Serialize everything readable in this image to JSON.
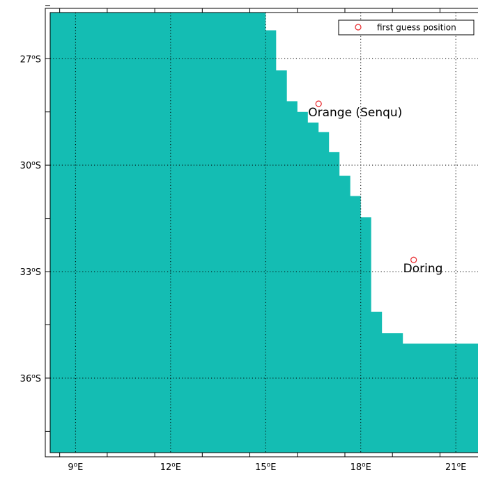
{
  "map": {
    "projection": "plate-carree",
    "lon_range": [
      8.2,
      21.7
    ],
    "lat_range": [
      -38.1,
      -25.7
    ],
    "colors": {
      "ocean": "#14bdb3",
      "land": "#ffffff",
      "grid": "#000000",
      "marker": "#e8262a"
    },
    "grid_style": "dotted",
    "lon_ticks": [
      {
        "value": 9,
        "deg": "9",
        "hemi": "E"
      },
      {
        "value": 12,
        "deg": "12",
        "hemi": "E"
      },
      {
        "value": 15,
        "deg": "15",
        "hemi": "E"
      },
      {
        "value": 18,
        "deg": "18",
        "hemi": "E"
      },
      {
        "value": 21,
        "deg": "21",
        "hemi": "E"
      }
    ],
    "lat_ticks": [
      {
        "value": -27,
        "deg": "27",
        "hemi": "S"
      },
      {
        "value": -30,
        "deg": "30",
        "hemi": "S"
      },
      {
        "value": -33,
        "deg": "33",
        "hemi": "S"
      },
      {
        "value": -36,
        "deg": "36",
        "hemi": "S"
      }
    ],
    "ocean_polygon": [
      [
        8.2,
        -25.7
      ],
      [
        15.0,
        -25.7
      ],
      [
        15.0,
        -26.2
      ],
      [
        15.33,
        -26.2
      ],
      [
        15.33,
        -27.33
      ],
      [
        15.67,
        -27.33
      ],
      [
        15.67,
        -28.2
      ],
      [
        16.0,
        -28.2
      ],
      [
        16.0,
        -28.5
      ],
      [
        16.33,
        -28.5
      ],
      [
        16.33,
        -28.8
      ],
      [
        16.67,
        -28.8
      ],
      [
        16.67,
        -29.07
      ],
      [
        17.0,
        -29.07
      ],
      [
        17.0,
        -29.63
      ],
      [
        17.33,
        -29.63
      ],
      [
        17.33,
        -30.3
      ],
      [
        17.67,
        -30.3
      ],
      [
        17.67,
        -30.87
      ],
      [
        18.0,
        -30.87
      ],
      [
        18.0,
        -31.47
      ],
      [
        18.33,
        -31.47
      ],
      [
        18.33,
        -34.13
      ],
      [
        18.67,
        -34.13
      ],
      [
        18.67,
        -34.73
      ],
      [
        19.33,
        -34.73
      ],
      [
        19.33,
        -35.03
      ],
      [
        21.7,
        -35.03
      ],
      [
        21.7,
        -38.1
      ],
      [
        8.2,
        -38.1
      ]
    ],
    "rivers": [
      {
        "label": "Orange (Senqu)",
        "lon": 16.67,
        "lat": -28.27
      },
      {
        "label": "Doring",
        "lon": 19.67,
        "lat": -32.67
      }
    ],
    "legend": {
      "label": "first guess position",
      "position": "top-right"
    }
  }
}
